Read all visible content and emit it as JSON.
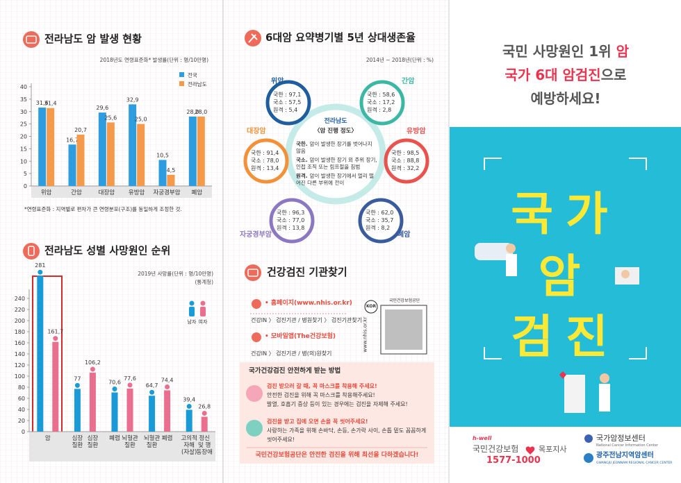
{
  "chart_data": [
    {
      "type": "bar",
      "title": "전라남도 암 발생 현황",
      "subtitle": "2018년도 연령표준화* 발생률(단위 : 명/10만명)",
      "categories": [
        "위암",
        "간암",
        "대장암",
        "유방암",
        "자궁경부암",
        "폐암"
      ],
      "series": [
        {
          "name": "전국",
          "color": "#2d9de0",
          "values": [
            31.6,
            16.7,
            29.6,
            32.9,
            10.5,
            28.0
          ],
          "value_labels": [
            "31,6",
            "16,7",
            "29,6",
            "32,9",
            "10,5",
            "28,0"
          ]
        },
        {
          "name": "전라남도",
          "color": "#f59a4a",
          "values": [
            31.4,
            20.7,
            25.6,
            25.0,
            4.5,
            28.0
          ],
          "value_labels": [
            "31,4",
            "20,7",
            "25,6",
            "25,0",
            "4,5",
            "28,0"
          ]
        }
      ],
      "ylim": [
        0,
        40
      ],
      "yticks": [
        0,
        5,
        10,
        15,
        20,
        25,
        30,
        35,
        40
      ],
      "note": "*연령표준화 : 지역별로 편차가 큰 연령분포(구조)를 동일하게 조정한 것."
    },
    {
      "type": "bar",
      "title": "전라남도 성별 사망원인 순위",
      "subtitle": "2019년 사망률(단위 : 명/10만명)",
      "source": "(통계청)",
      "series": [
        {
          "name": "남자",
          "color": "#1a9ad6",
          "values": [
            281,
            77,
            70.6,
            64.7,
            39.4
          ],
          "value_labels": [
            "281",
            "77",
            "70,6",
            "64,7",
            "39,4"
          ],
          "bar_labels": [
            "암",
            "심장 질환",
            "폐렴",
            "뇌혈관 질환",
            "고의적 자해 (자살)"
          ]
        },
        {
          "name": "여자",
          "color": "#ea6f8e",
          "values": [
            161.7,
            106.2,
            77.6,
            74.4,
            26.8
          ],
          "value_labels": [
            "161,7",
            "106,2",
            "77,6",
            "74,4",
            "26,8"
          ],
          "bar_labels": [
            null,
            "심장 질환",
            "뇌혈관 질환",
            "폐렴",
            "정신 및 행동장애"
          ]
        }
      ],
      "ylim": [
        0,
        250
      ],
      "yticks": [
        0,
        20,
        40,
        60,
        80,
        100,
        120,
        140,
        160,
        180,
        200,
        220,
        240
      ]
    }
  ],
  "survival": {
    "title": "6대암 요약병기별 5년 상대생존율",
    "subtitle": "2014년 ~ 2018년(단위 : %)",
    "center_title": "전라남도",
    "center_subtitle": "〈암 진행 정도〉",
    "definitions": [
      {
        "term": "국한.",
        "text": "암이 발생한 장기를 벗어나지 않음"
      },
      {
        "term": "국소.",
        "text": "암이 발생한 장기 외 주위 장기, 인접 조직 또는 림프절을 침범"
      },
      {
        "term": "원격.",
        "text": "암이 발생한 장기에서 멀리 떨어진 다른 부위에 전이"
      }
    ],
    "cancers": [
      {
        "name": "위암",
        "rows": [
          "국한 : 97,1",
          "국소 : 57,5",
          "원격 : 5,4"
        ]
      },
      {
        "name": "간암",
        "rows": [
          "국한 : 58,6",
          "국소 : 17,2",
          "원격 : 2,8"
        ]
      },
      {
        "name": "대장암",
        "rows": [
          "국한 : 91,4",
          "국소 : 78,0",
          "원격 : 13,4"
        ]
      },
      {
        "name": "유방암",
        "rows": [
          "국한 : 98,5",
          "국소 : 88,8",
          "원격 : 32,2"
        ]
      },
      {
        "name": "자궁경부암",
        "rows": [
          "국한 : 96,3",
          "국소 : 77,0",
          "원격 : 13,8"
        ]
      },
      {
        "name": "폐암",
        "rows": [
          "국한 : 62,0",
          "국소 : 35,7",
          "원격 : 8,2"
        ]
      }
    ]
  },
  "checkup": {
    "title": "건강검진 기관찾기",
    "items": [
      {
        "label": "• 홈페이지(www.nhis.or.kr)",
        "path": "건강IN 〉 검진기관 / 병원찾기 〉 검진기관찾기"
      },
      {
        "label": "• 모바일앱(The건강보험)",
        "path": "건강IN 〉 검진기관 / 병(의)원찾기"
      }
    ],
    "qr_caption": "국민건강보험공단",
    "qr_url": "www.nhis.or.kr",
    "qr_badge": "KOR"
  },
  "safety": {
    "title": "국가건강검진 안전하게 받는 방법",
    "tips": [
      {
        "heading": "검진 받으러 갈 때, 꼭 마스크를 착용해 주세요!",
        "lines": [
          "안전한 검진을 위해 꼭 마스크를 착용해주세요!",
          "발열, 호흡기 증상 등이 있는 경우에는 검진을 자제해 주세요!"
        ]
      },
      {
        "heading": "검진을 받고 집에 오면 손을 꼭 씻어주세요!",
        "lines": [
          "사랑하는 가족을 위해 손바닥, 손등, 손가락 사이, 손톱 밑도 꼼꼼하게",
          "씻어주세요!"
        ]
      }
    ],
    "footer": "국민건강보험공단은 안전한 검진을 위해 최선을 다하겠습니다!"
  },
  "cover": {
    "headline": [
      [
        "국민 사망원인 1위",
        "암"
      ],
      [
        "국가 6대 암검진",
        "으로"
      ],
      [
        "예방하세요!"
      ]
    ],
    "big_title": [
      "국가",
      "암",
      "검진"
    ]
  },
  "footer": {
    "nhis_brand": "h-well",
    "nhis_name": "국민건강보험",
    "nhis_branch": "목포지사",
    "nhis_phone": "1577-1000",
    "nci_name": "국가암정보센터",
    "nci_en": "National Cancer Information Center",
    "rcc_name": "광주전남지역암센터",
    "rcc_en": "GWANGJU JEONNAM REGIONAL CANCER CENTER"
  }
}
